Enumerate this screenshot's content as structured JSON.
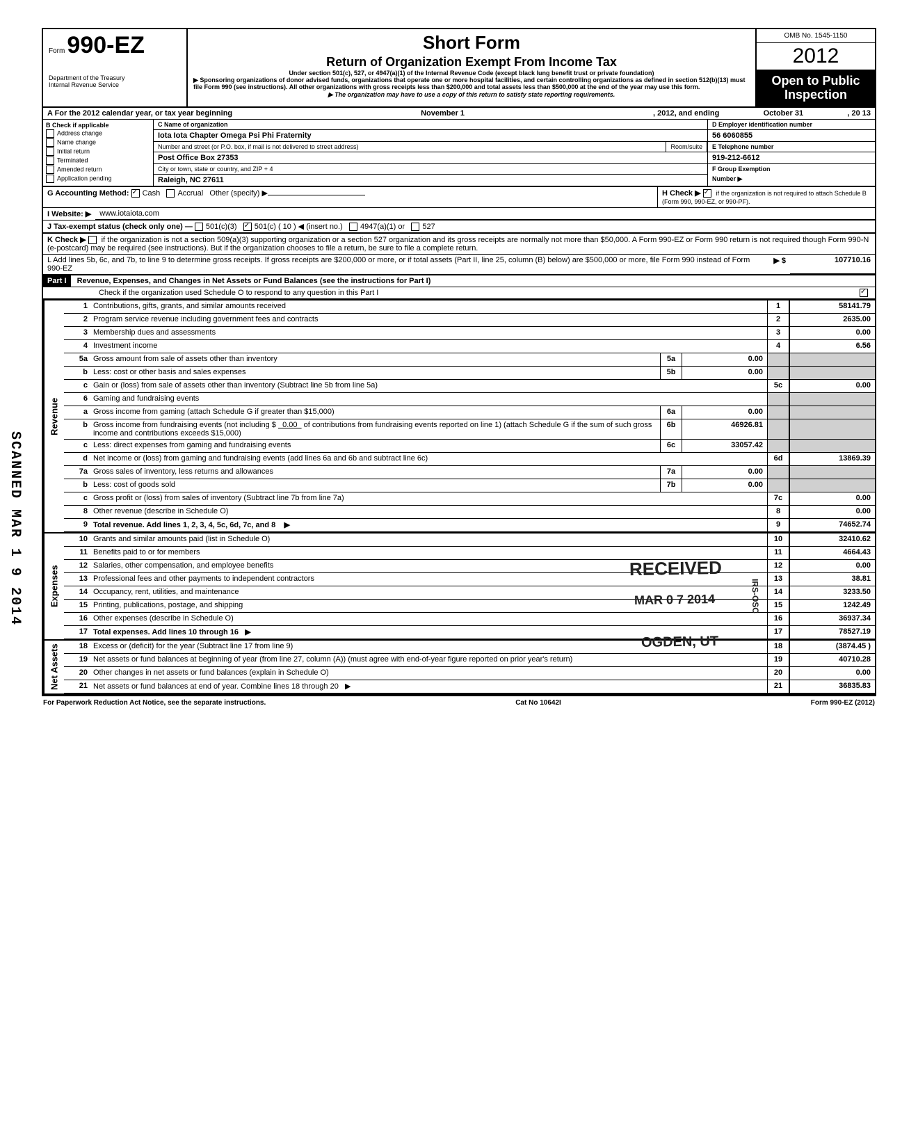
{
  "header": {
    "form_prefix": "Form",
    "form_number": "990-EZ",
    "dept1": "Department of the Treasury",
    "dept2": "Internal Revenue Service",
    "title_main": "Short Form",
    "title_sub": "Return of Organization Exempt From Income Tax",
    "under": "Under section 501(c), 527, or 4947(a)(1) of the Internal Revenue Code (except black lung benefit trust or private foundation)",
    "sponsor": "▶ Sponsoring organizations of donor advised funds, organizations that operate one or more hospital facilities, and certain controlling organizations as defined in section 512(b)(13) must file Form 990 (see instructions). All other organizations with gross receipts less than $200,000 and total assets less than $500,000 at the end of the year may use this form.",
    "disclosure": "▶ The organization may have to use a copy of this return to satisfy state reporting requirements.",
    "omb": "OMB No. 1545-1150",
    "year": "2012",
    "open1": "Open to Public",
    "open2": "Inspection"
  },
  "line_a": {
    "label": "A  For the 2012 calendar year, or tax year beginning",
    "begin": "November 1",
    "mid": ", 2012, and ending",
    "end_month": "October 31",
    "end_year": ", 20   13"
  },
  "sec_b": {
    "heading": "B  Check if applicable",
    "items": [
      "Address change",
      "Name change",
      "Initial return",
      "Terminated",
      "Amended return",
      "Application pending"
    ]
  },
  "sec_c": {
    "label": "C  Name of organization",
    "name": "Iota Iota Chapter Omega Psi Phi Fraternity",
    "addr_label": "Number and street (or P.O. box, if mail is not delivered to street address)",
    "room": "Room/suite",
    "addr": "Post Office Box 27353",
    "city_label": "City or town, state or country, and ZIP + 4",
    "city": "Raleigh, NC 27611"
  },
  "sec_d": {
    "label": "D Employer identification number",
    "val": "56 6060855"
  },
  "sec_e": {
    "label": "E Telephone number",
    "val": "919-212-6612"
  },
  "sec_f": {
    "label": "F Group Exemption",
    "label2": "Number ▶"
  },
  "sec_g": {
    "label": "G  Accounting Method:",
    "cash": "Cash",
    "accrual": "Accrual",
    "other": "Other (specify) ▶"
  },
  "sec_h": {
    "label": "H  Check ▶",
    "text": "if the organization is not required to attach Schedule B (Form 990, 990-EZ, or 990-PF)."
  },
  "sec_i": {
    "label": "I   Website: ▶",
    "val": "www.iotaiota.com"
  },
  "sec_j": {
    "label": "J  Tax-exempt status (check only one) —",
    "c3": "501(c)(3)",
    "c_ins": "501(c) (  10  ) ◀ (insert no.)",
    "a1": "4947(a)(1) or",
    "527": "527"
  },
  "sec_k": {
    "label": "K  Check ▶",
    "text": "if the organization is not a section 509(a)(3) supporting organization or a section 527 organization and its gross receipts are normally not more than $50,000. A Form 990-EZ or Form 990 return is not required though Form 990-N (e-postcard) may be required (see instructions). But if the organization chooses to file a return, be sure to file a complete return."
  },
  "sec_l": {
    "text": "L  Add lines 5b, 6c, and 7b, to line 9 to determine gross receipts. If gross receipts are $200,000 or more, or if total assets (Part II, line 25, column (B) below) are $500,000 or more, file Form 990 instead of Form 990-EZ",
    "arrow": "▶  $",
    "val": "107710.16"
  },
  "part1": {
    "label": "Part I",
    "title": "Revenue, Expenses, and Changes in Net Assets or Fund Balances (see the instructions for Part I)",
    "check_line": "Check if the organization used Schedule O to respond to any question in this Part I",
    "check_on": true
  },
  "revenue": [
    {
      "n": "1",
      "d": "Contributions, gifts, grants, and similar amounts received",
      "v": "58141.79"
    },
    {
      "n": "2",
      "d": "Program service revenue including government fees and contracts",
      "v": "2635.00"
    },
    {
      "n": "3",
      "d": "Membership dues and assessments",
      "v": "0.00"
    },
    {
      "n": "4",
      "d": "Investment income",
      "v": "6.56"
    }
  ],
  "line5": {
    "a_n": "5a",
    "a_d": "Gross amount from sale of assets other than inventory",
    "a_v": "0.00",
    "b_n": "b",
    "b_d": "Less: cost or other basis and sales expenses",
    "b_sub": "5b",
    "b_v": "0.00",
    "c_n": "c",
    "c_d": "Gain or (loss) from sale of assets other than inventory (Subtract line 5b from line 5a)",
    "c_box": "5c",
    "c_v": "0.00"
  },
  "line6": {
    "n": "6",
    "d": "Gaming and fundraising events",
    "a_n": "a",
    "a_d": "Gross income from gaming (attach Schedule G if greater than $15,000)",
    "a_sub": "6a",
    "a_v": "0.00",
    "b_n": "b",
    "b_d": "Gross income from fundraising events (not including  $",
    "b_mid": "0.00",
    "b_d2": "of contributions from fundraising events reported on line 1) (attach Schedule G if the sum of such gross income and contributions exceeds $15,000)",
    "b_sub": "6b",
    "b_v": "46926.81",
    "c_n": "c",
    "c_d": "Less: direct expenses from gaming and fundraising events",
    "c_sub": "6c",
    "c_v": "33057.42",
    "d_n": "d",
    "d_d": "Net income or (loss) from gaming and fundraising events (add lines 6a and 6b and subtract line 6c)",
    "d_box": "6d",
    "d_v": "13869.39"
  },
  "line7": {
    "a_n": "7a",
    "a_d": "Gross sales of inventory, less returns and allowances",
    "a_sub": "7a",
    "a_v": "0.00",
    "b_n": "b",
    "b_d": "Less: cost of goods sold",
    "b_sub": "7b",
    "b_v": "0.00",
    "c_n": "c",
    "c_d": "Gross profit or (loss) from sales of inventory (Subtract line 7b from line 7a)",
    "c_box": "7c",
    "c_v": "0.00"
  },
  "line8": {
    "n": "8",
    "d": "Other revenue (describe in Schedule O)",
    "v": "0.00"
  },
  "line9": {
    "n": "9",
    "d": "Total revenue. Add lines 1, 2, 3, 4, 5c, 6d, 7c, and 8",
    "arrow": "▶",
    "v": "74652.74"
  },
  "expenses": [
    {
      "n": "10",
      "d": "Grants and similar amounts paid (list in Schedule O)",
      "v": "32410.62"
    },
    {
      "n": "11",
      "d": "Benefits paid to or for members",
      "v": "4664.43"
    },
    {
      "n": "12",
      "d": "Salaries, other compensation, and employee benefits",
      "v": "0.00"
    },
    {
      "n": "13",
      "d": "Professional fees and other payments to independent contractors",
      "v": "38.81"
    },
    {
      "n": "14",
      "d": "Occupancy, rent, utilities, and maintenance",
      "v": "3233.50"
    },
    {
      "n": "15",
      "d": "Printing, publications, postage, and shipping",
      "v": "1242.49"
    },
    {
      "n": "16",
      "d": "Other expenses (describe in Schedule O)",
      "v": "36937.34"
    },
    {
      "n": "17",
      "d": "Total expenses. Add lines 10 through 16",
      "arrow": "▶",
      "v": "78527.19"
    }
  ],
  "netassets": [
    {
      "n": "18",
      "d": "Excess or (deficit) for the year (Subtract line 17 from line 9)",
      "v": "(3874.45 )"
    },
    {
      "n": "19",
      "d": "Net assets or fund balances at beginning of year (from line 27, column (A)) (must agree with end-of-year figure reported on prior year's return)",
      "v": "40710.28"
    },
    {
      "n": "20",
      "d": "Other changes in net assets or fund balances (explain in Schedule O)",
      "v": "0.00"
    },
    {
      "n": "21",
      "d": "Net assets or fund balances at end of year. Combine lines 18 through 20",
      "arrow": "▶",
      "v": "36835.83"
    }
  ],
  "side_labels": {
    "rev": "Revenue",
    "exp": "Expenses",
    "net": "Net Assets"
  },
  "footer": {
    "left": "For Paperwork Reduction Act Notice, see the separate instructions.",
    "mid": "Cat No  10642I",
    "right": "Form 990-EZ (2012)"
  },
  "stamps": {
    "received": "RECEIVED",
    "date": "MAR 0 7 2014",
    "ogden": "OGDEN, UT",
    "side_vert": "IRS-OSC",
    "scanned": "SCANNED MAR 1 9 2014"
  },
  "colors": {
    "black": "#000000",
    "white": "#ffffff",
    "shade": "#d0d0d0"
  }
}
